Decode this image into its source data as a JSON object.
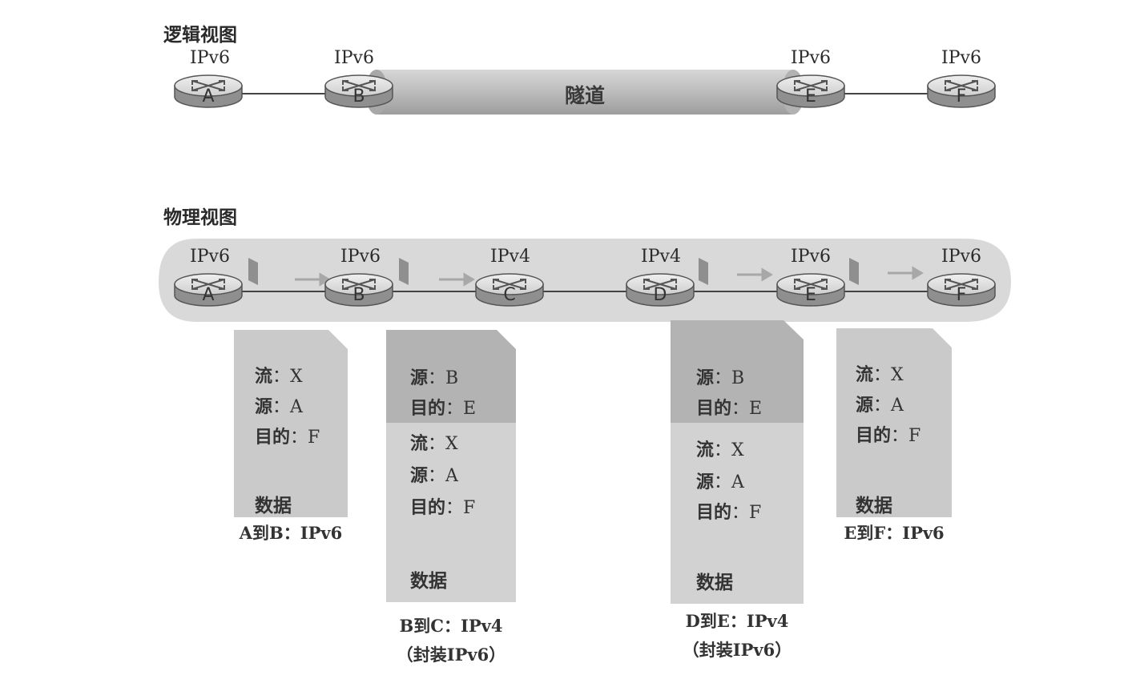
{
  "logical_view": {
    "label": "逻辑视图",
    "tunnel_label": "隧道",
    "routers": [
      {
        "letter": "A",
        "proto": "IPv6"
      },
      {
        "letter": "B",
        "proto": "IPv6"
      },
      {
        "letter": "E",
        "proto": "IPv6"
      },
      {
        "letter": "F",
        "proto": "IPv6"
      }
    ]
  },
  "physical_view": {
    "label": "物理视图",
    "routers": [
      {
        "letter": "A",
        "proto": "IPv6"
      },
      {
        "letter": "B",
        "proto": "IPv6"
      },
      {
        "letter": "C",
        "proto": "IPv4"
      },
      {
        "letter": "D",
        "proto": "IPv4"
      },
      {
        "letter": "E",
        "proto": "IPv6"
      },
      {
        "letter": "F",
        "proto": "IPv6"
      }
    ]
  },
  "packets": [
    {
      "id": "a-to-b",
      "fields": [
        {
          "key": "流",
          "val": "X"
        },
        {
          "key": "源",
          "val": "A"
        },
        {
          "key": "目的",
          "val": "F"
        }
      ],
      "data_label": "数据",
      "caption": [
        "A到B：IPv6"
      ]
    },
    {
      "id": "b-to-c",
      "outer_fields": [
        {
          "key": "源",
          "val": "B"
        },
        {
          "key": "目的",
          "val": "E"
        }
      ],
      "fields": [
        {
          "key": "流",
          "val": "X"
        },
        {
          "key": "源",
          "val": "A"
        },
        {
          "key": "目的",
          "val": "F"
        }
      ],
      "data_label": "数据",
      "caption": [
        "B到C：IPv4",
        "（封装IPv6）"
      ]
    },
    {
      "id": "d-to-e",
      "outer_fields": [
        {
          "key": "源",
          "val": "B"
        },
        {
          "key": "目的",
          "val": "E"
        }
      ],
      "fields": [
        {
          "key": "流",
          "val": "X"
        },
        {
          "key": "源",
          "val": "A"
        },
        {
          "key": "目的",
          "val": "F"
        }
      ],
      "data_label": "数据",
      "caption": [
        "D到E：IPv4",
        "（封装IPv6）"
      ]
    },
    {
      "id": "e-to-f",
      "fields": [
        {
          "key": "流",
          "val": "X"
        },
        {
          "key": "源",
          "val": "A"
        },
        {
          "key": "目的",
          "val": "F"
        }
      ],
      "data_label": "数据",
      "caption": [
        "E到F：IPv6"
      ]
    }
  ],
  "colors": {
    "router_top": "#e2e2e2",
    "router_side": "#9a9a9a",
    "tunnel": "#bdbdbd",
    "band": "#dcdcdc",
    "packet_outer": "#b5b5b5",
    "packet_inner": "#d4d4d4",
    "packet_plain": "#cccccc"
  }
}
